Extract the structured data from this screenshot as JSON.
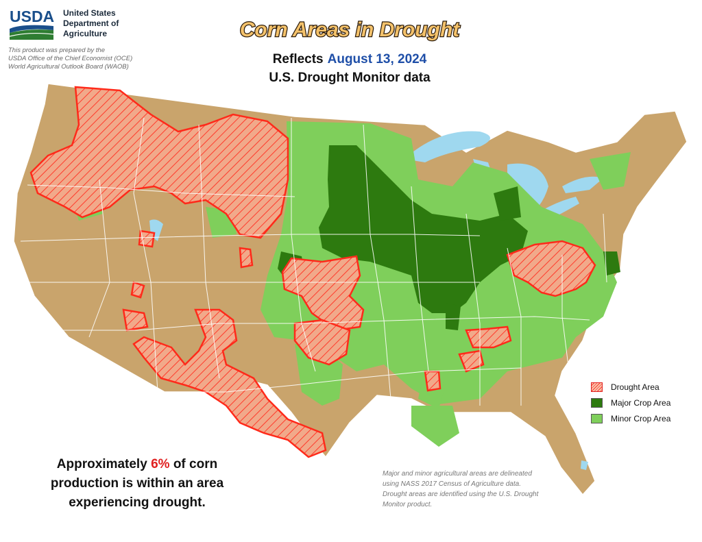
{
  "header": {
    "logo_text": "USDA",
    "department_lines": [
      "United States",
      "Department of",
      "Agriculture"
    ],
    "credit_lines": [
      "This product was prepared by the",
      "USDA Office of the Chief Economist (OCE)",
      "World Agricultural Outlook Board (WAOB)"
    ]
  },
  "title": "Corn Areas in Drought",
  "reflects_label": "Reflects",
  "date": "August 13, 2024",
  "subtitle": "U.S. Drought Monitor data",
  "legend": {
    "items": [
      {
        "label": "Drought Area",
        "color": "#ff2a1a"
      },
      {
        "label": "Major Crop Area",
        "color": "#2d7a0f"
      },
      {
        "label": "Minor Crop Area",
        "color": "#7fcf5b"
      }
    ]
  },
  "map_colors": {
    "land": "#c9a46c",
    "water": "#9fd8ef",
    "major_crop": "#2d7a0f",
    "minor_crop": "#7fcf5b",
    "drought_outline": "#ff2a1a",
    "state_lines": "#ffffff"
  },
  "stat": {
    "prefix": "Approximately",
    "percent": "6%",
    "suffix_1": "of corn",
    "line_2": "production is within an area",
    "line_3": "experiencing drought."
  },
  "note": "Major and minor agricultural areas are delineated using NASS 2017 Census of Agriculture data. Drought areas are identified using the U.S. Drought Monitor product."
}
